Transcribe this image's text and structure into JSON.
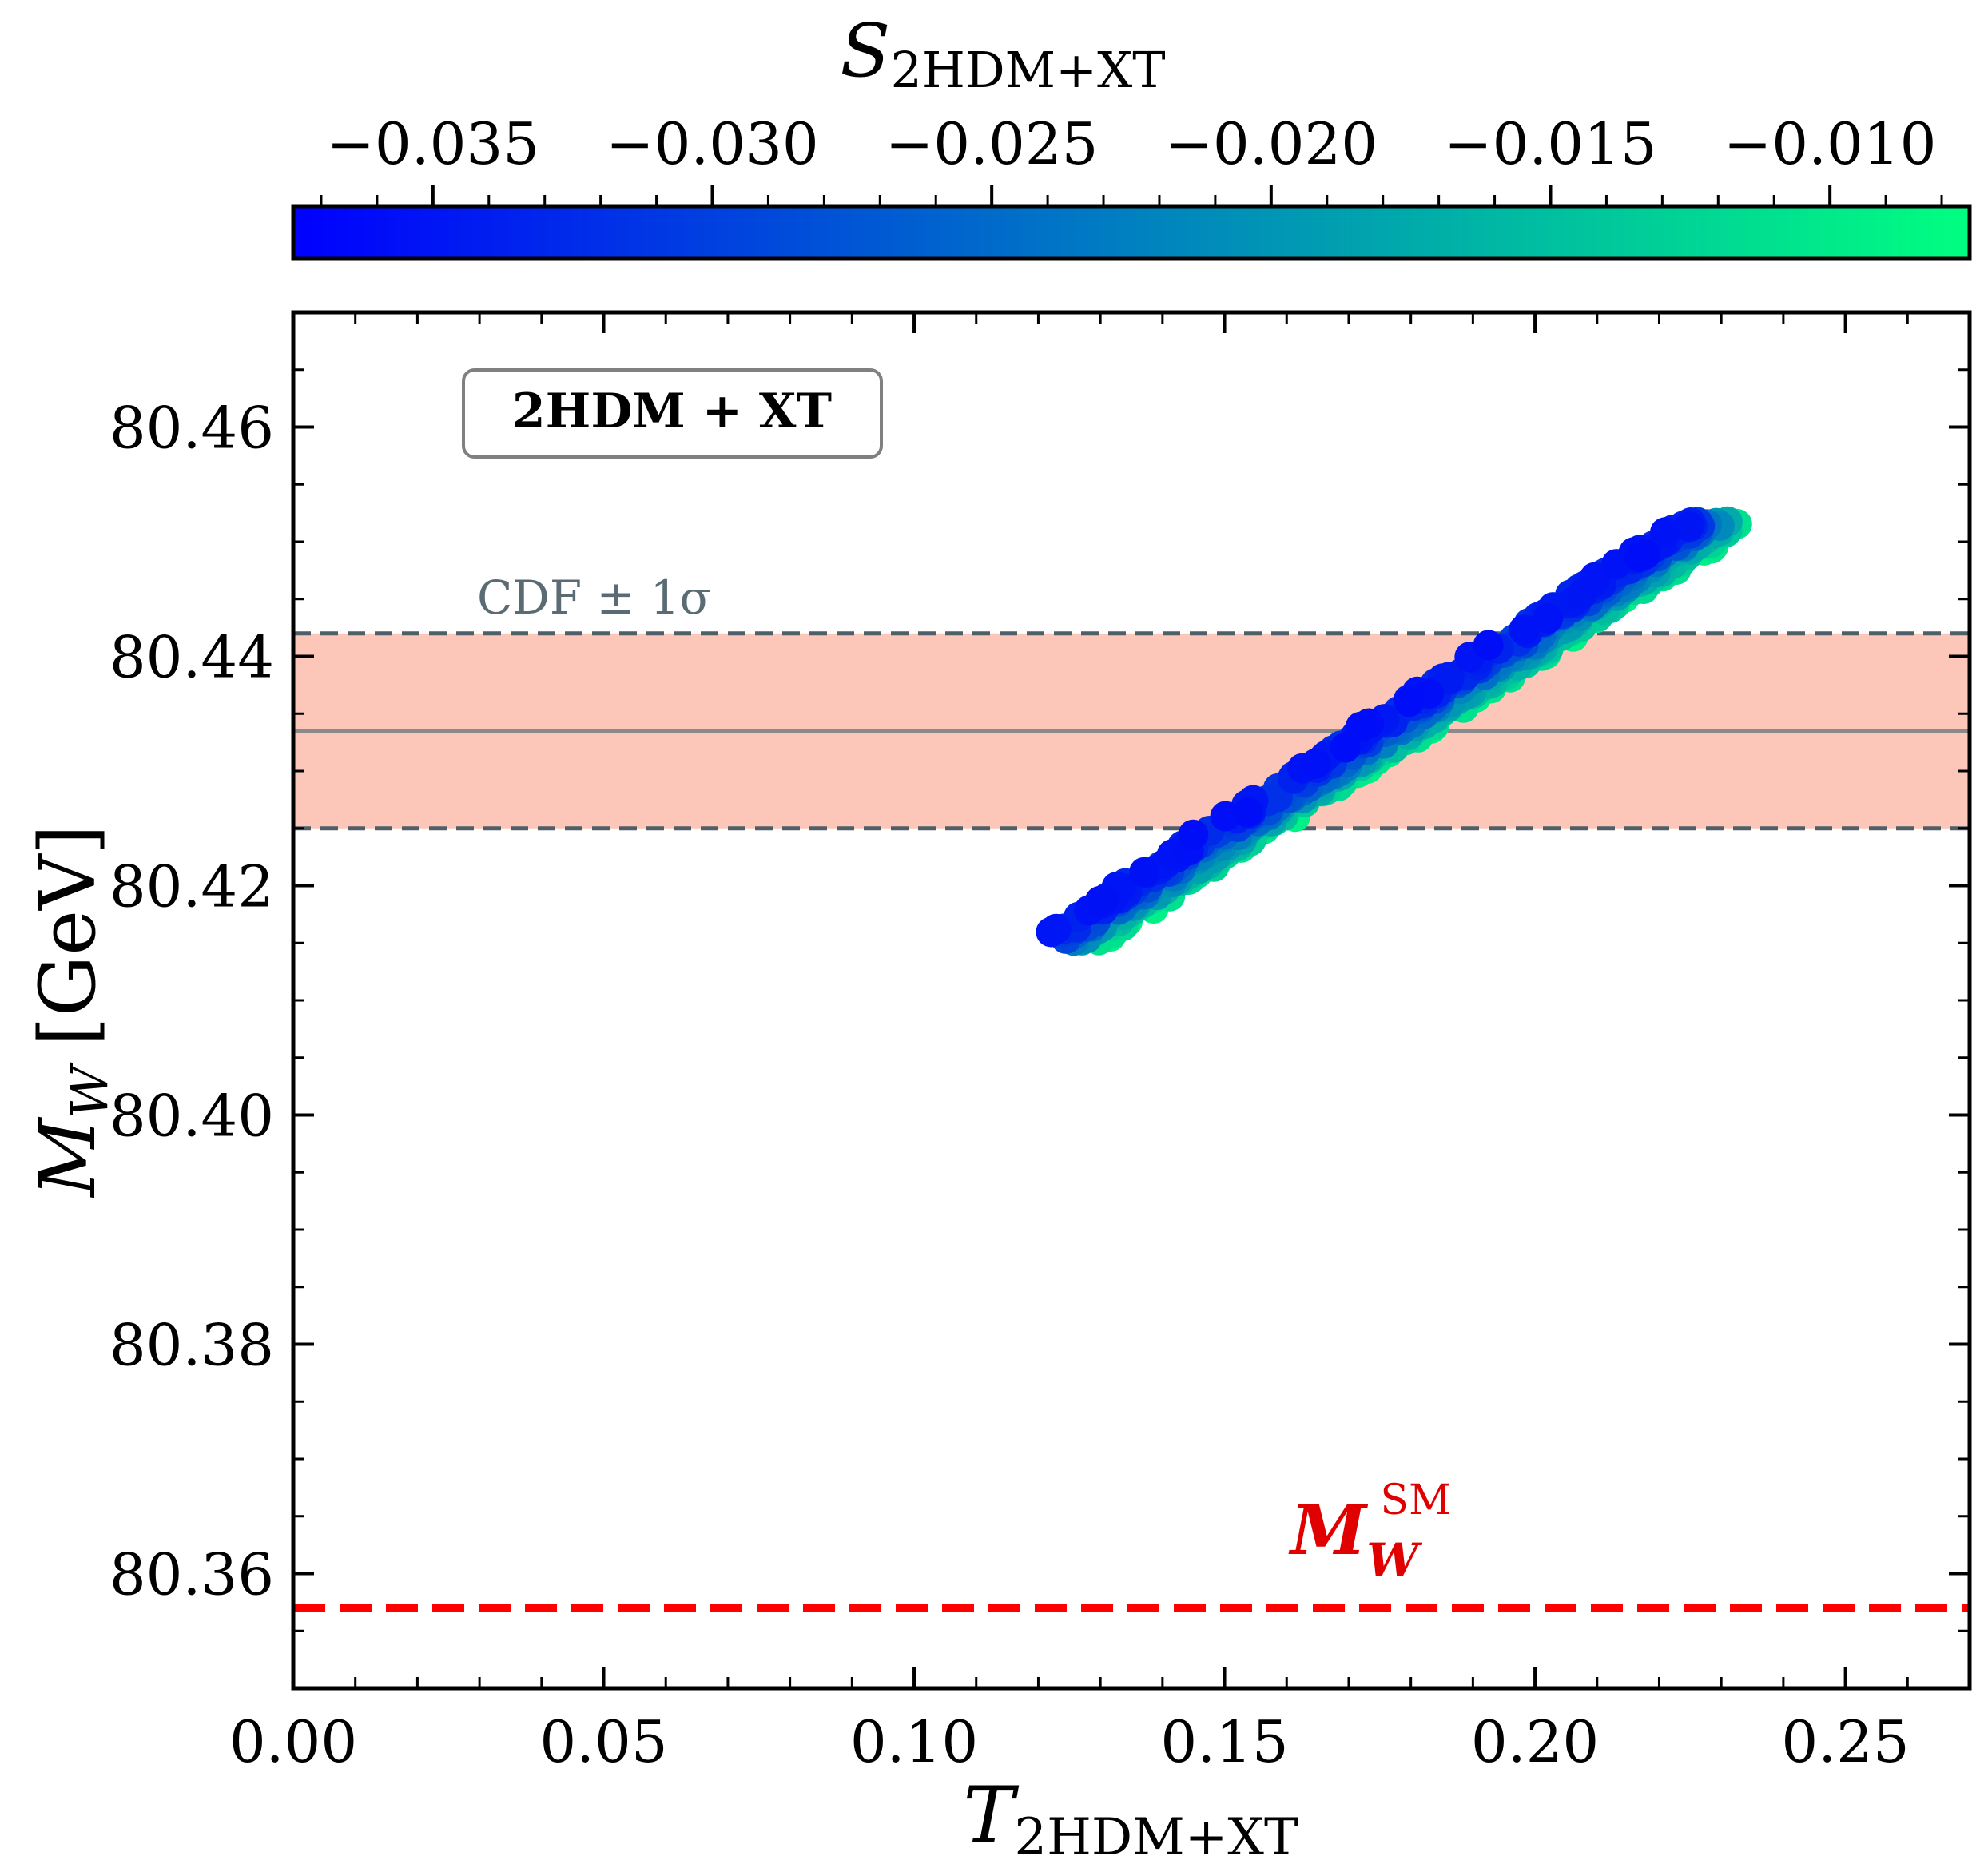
{
  "chart_data": {
    "type": "scatter",
    "xlabel": {
      "main": "T",
      "sub": "2HDM+XT"
    },
    "ylabel": {
      "main": "M",
      "sub": "W",
      "unit": "[GeV]"
    },
    "xlim": [
      0.0,
      0.27
    ],
    "ylim": [
      80.35,
      80.47
    ],
    "xticks": [
      0.0,
      0.05,
      0.1,
      0.15,
      0.2,
      0.25
    ],
    "xtick_labels": [
      "0.00",
      "0.05",
      "0.10",
      "0.15",
      "0.20",
      "0.25"
    ],
    "yticks": [
      80.36,
      80.38,
      80.4,
      80.42,
      80.44,
      80.46
    ],
    "ytick_labels": [
      "80.36",
      "80.38",
      "80.40",
      "80.42",
      "80.44",
      "80.46"
    ],
    "colorbar": {
      "label": {
        "main": "S",
        "sub": "2HDM+XT"
      },
      "range": [
        -0.0375,
        -0.0075
      ],
      "ticks": [
        -0.035,
        -0.03,
        -0.025,
        -0.02,
        -0.015,
        -0.01
      ],
      "tick_labels": [
        "−0.035",
        "−0.030",
        "−0.025",
        "−0.020",
        "−0.015",
        "−0.010"
      ],
      "color_low": "#0000ff",
      "color_high": "#00ff80"
    },
    "annotation_box": "2HDM + XT",
    "cdf_band": {
      "label": "CDF ± 1σ",
      "central": 80.4335,
      "lower": 80.425,
      "upper": 80.442,
      "fill_color": "#fcc7b8",
      "central_color": "#8a8a8a",
      "edge_color": "#4f5f68"
    },
    "sm_line": {
      "label_main": "M",
      "label_sub": "W",
      "label_sup": "SM",
      "value": 80.357,
      "color": "#ff0000"
    },
    "scatter_band": {
      "t_min": 0.121,
      "t_max": 0.225,
      "mw_at_t_min": 80.4155,
      "mw_at_t_max": 80.452,
      "description_relation": "points lie along a narrow diagonal band; lower S (blue) at upper-left edge, higher S (green) at lower-right edge"
    },
    "grid": false,
    "legend": "none"
  }
}
